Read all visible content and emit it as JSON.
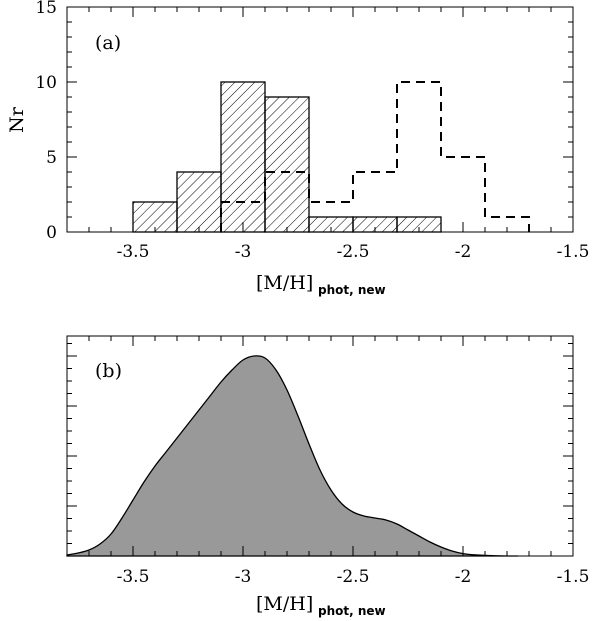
{
  "chart_data": [
    {
      "panel": "(a)",
      "type": "bar",
      "subtype": "histogram",
      "xlabel": "[M/H]",
      "xlabel_subscript": "phot, new",
      "ylabel": "Nr",
      "xlim": [
        -3.8,
        -1.5
      ],
      "ylim": [
        0,
        15
      ],
      "xticks": [
        -3.5,
        -3,
        -2.5,
        -2,
        -1.5
      ],
      "xtick_labels": [
        "-3.5",
        "-3",
        "-2.5",
        "-2",
        "-1.5"
      ],
      "yticks": [
        0,
        5,
        10,
        15
      ],
      "ytick_labels": [
        "0",
        "5",
        "10",
        "15"
      ],
      "series": [
        {
          "name": "hatched",
          "style": "hatched",
          "bin_edges": [
            -3.5,
            -3.3,
            -3.1,
            -2.9,
            -2.7,
            -2.5,
            -2.3,
            -2.1
          ],
          "values": [
            2,
            4,
            10,
            9,
            1,
            1,
            1
          ]
        },
        {
          "name": "dashed",
          "style": "dashed-step",
          "bin_edges": [
            -3.1,
            -2.9,
            -2.7,
            -2.5,
            -2.3,
            -2.1,
            -1.9,
            -1.7
          ],
          "values": [
            2,
            4,
            2,
            4,
            10,
            5,
            1
          ]
        }
      ]
    },
    {
      "panel": "(b)",
      "type": "area",
      "subtype": "density",
      "xlabel": "[M/H]",
      "xlabel_subscript": "phot, new",
      "xlim": [
        -3.8,
        -1.5
      ],
      "ylim": [
        0,
        1.1
      ],
      "xticks": [
        -3.5,
        -3,
        -2.5,
        -2,
        -1.5
      ],
      "xtick_labels": [
        "-3.5",
        "-3",
        "-2.5",
        "-2",
        "-1.5"
      ],
      "x": [
        -3.8,
        -3.75,
        -3.7,
        -3.65,
        -3.6,
        -3.55,
        -3.5,
        -3.45,
        -3.4,
        -3.35,
        -3.3,
        -3.25,
        -3.2,
        -3.15,
        -3.1,
        -3.05,
        -3.0,
        -2.95,
        -2.9,
        -2.85,
        -2.8,
        -2.75,
        -2.7,
        -2.65,
        -2.6,
        -2.55,
        -2.5,
        -2.45,
        -2.4,
        -2.35,
        -2.3,
        -2.25,
        -2.2,
        -2.15,
        -2.1,
        -2.05,
        -2.0,
        -1.95,
        -1.9,
        -1.85,
        -1.8,
        -1.75
      ],
      "y": [
        0.005,
        0.015,
        0.03,
        0.06,
        0.11,
        0.19,
        0.28,
        0.37,
        0.45,
        0.52,
        0.59,
        0.66,
        0.73,
        0.8,
        0.87,
        0.93,
        0.98,
        1.0,
        0.99,
        0.93,
        0.83,
        0.7,
        0.56,
        0.43,
        0.33,
        0.26,
        0.22,
        0.2,
        0.19,
        0.18,
        0.16,
        0.13,
        0.1,
        0.07,
        0.045,
        0.025,
        0.012,
        0.006,
        0.003,
        0.001,
        0.0,
        0.0
      ]
    }
  ],
  "labels": {
    "panel_a": "(a)",
    "panel_b": "(b)",
    "ylabel": "Nr",
    "xlabel_main": "[M/H]",
    "xlabel_sub": "phot, new"
  }
}
